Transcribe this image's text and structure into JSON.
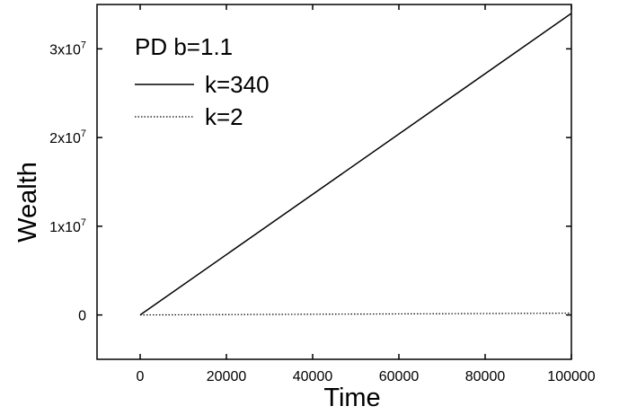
{
  "chart_data": {
    "type": "line",
    "title": "",
    "xlabel": "Time",
    "ylabel": "Wealth",
    "xlim": [
      -10000,
      100000
    ],
    "ylim": [
      -5000000,
      35000000
    ],
    "x_ticks": [
      0,
      20000,
      40000,
      60000,
      80000,
      100000
    ],
    "x_tick_labels": [
      "0",
      "20000",
      "40000",
      "60000",
      "80000",
      "100000"
    ],
    "y_ticks": [
      0,
      10000000,
      20000000,
      30000000
    ],
    "y_tick_labels": [
      {
        "base": "0",
        "exp": ""
      },
      {
        "base": "1x10",
        "exp": "7"
      },
      {
        "base": "2x10",
        "exp": "7"
      },
      {
        "base": "3x10",
        "exp": "7"
      }
    ],
    "grid": false,
    "legend_title": "PD b=1.1",
    "legend_position": "top-left",
    "series": [
      {
        "name": "k=340",
        "style": "solid",
        "x": [
          0,
          100000
        ],
        "y": [
          0,
          34000000
        ]
      },
      {
        "name": "k=2",
        "style": "dotted",
        "x": [
          0,
          100000
        ],
        "y": [
          0,
          200000
        ]
      }
    ]
  }
}
